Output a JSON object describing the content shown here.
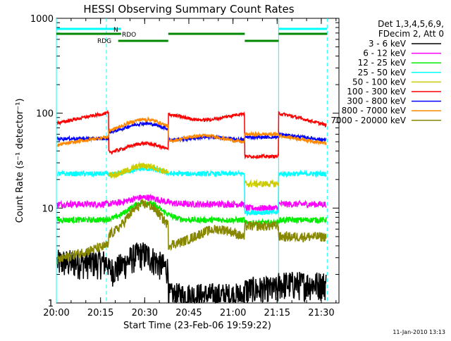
{
  "chart_data": {
    "type": "line",
    "title": "HESSI Observing Summary Count Rates",
    "xlabel": "Start Time (23-Feb-06 19:59:22)",
    "ylabel": "Count Rate (s⁻¹ detector⁻¹)",
    "yscale": "log",
    "ylim": [
      1,
      1000
    ],
    "xlim_minutes": [
      0,
      96
    ],
    "x_ticks": [
      {
        "label": "20:00",
        "t": 0
      },
      {
        "label": "20:15",
        "t": 15
      },
      {
        "label": "20:30",
        "t": 30
      },
      {
        "label": "20:45",
        "t": 45
      },
      {
        "label": "21:00",
        "t": 60
      },
      {
        "label": "21:15",
        "t": 75
      },
      {
        "label": "21:30",
        "t": 90
      }
    ],
    "y_ticks": [
      {
        "label": "1",
        "v": 1
      },
      {
        "label": "10",
        "v": 10
      },
      {
        "label": "100",
        "v": 100
      },
      {
        "label": "1000",
        "v": 1000
      }
    ],
    "legend_header": [
      "Det 1,3,4,5,6,9,",
      "FDecim 2, Att 0"
    ],
    "legend_position": "right",
    "series": [
      {
        "name": "3 - 6 keV",
        "color": "#000000",
        "level": 2.2
      },
      {
        "name": "6 - 12 keV",
        "color": "#ff00ff",
        "level": 11
      },
      {
        "name": "12 - 25 keV",
        "color": "#00ee00",
        "level": 7.5
      },
      {
        "name": "25 - 50 keV",
        "color": "#00ffff",
        "level": 23
      },
      {
        "name": "50 - 100 keV",
        "color": "#cccc00",
        "level": 18
      },
      {
        "name": "100 - 300 keV",
        "color": "#ff0000",
        "level": 78
      },
      {
        "name": "300 - 800 keV",
        "color": "#0000ff",
        "level": 54
      },
      {
        "name": "800 - 7000 keV",
        "color": "#ff8800",
        "level": 49
      },
      {
        "name": "7000 - 20000 keV",
        "color": "#888800",
        "level": 2.8
      }
    ],
    "flags": [
      {
        "label": "N",
        "color": "#00ffff",
        "segments": [
          [
            0,
            22
          ],
          [
            75.5,
            92
          ]
        ]
      },
      {
        "label": "RDO",
        "color": "#008800",
        "segments": [
          [
            0,
            22
          ],
          [
            38,
            64
          ],
          [
            75.5,
            92
          ]
        ]
      },
      {
        "label": "RDG",
        "color": "#008800",
        "segments": [
          [
            21,
            38
          ],
          [
            64,
            75.5
          ]
        ]
      }
    ],
    "saa_lines_solid": [
      0,
      75.5
    ],
    "saa_lines_dashed": [
      17,
      92
    ]
  },
  "footer": {
    "timestamp": "11-Jan-2010 13:13"
  }
}
